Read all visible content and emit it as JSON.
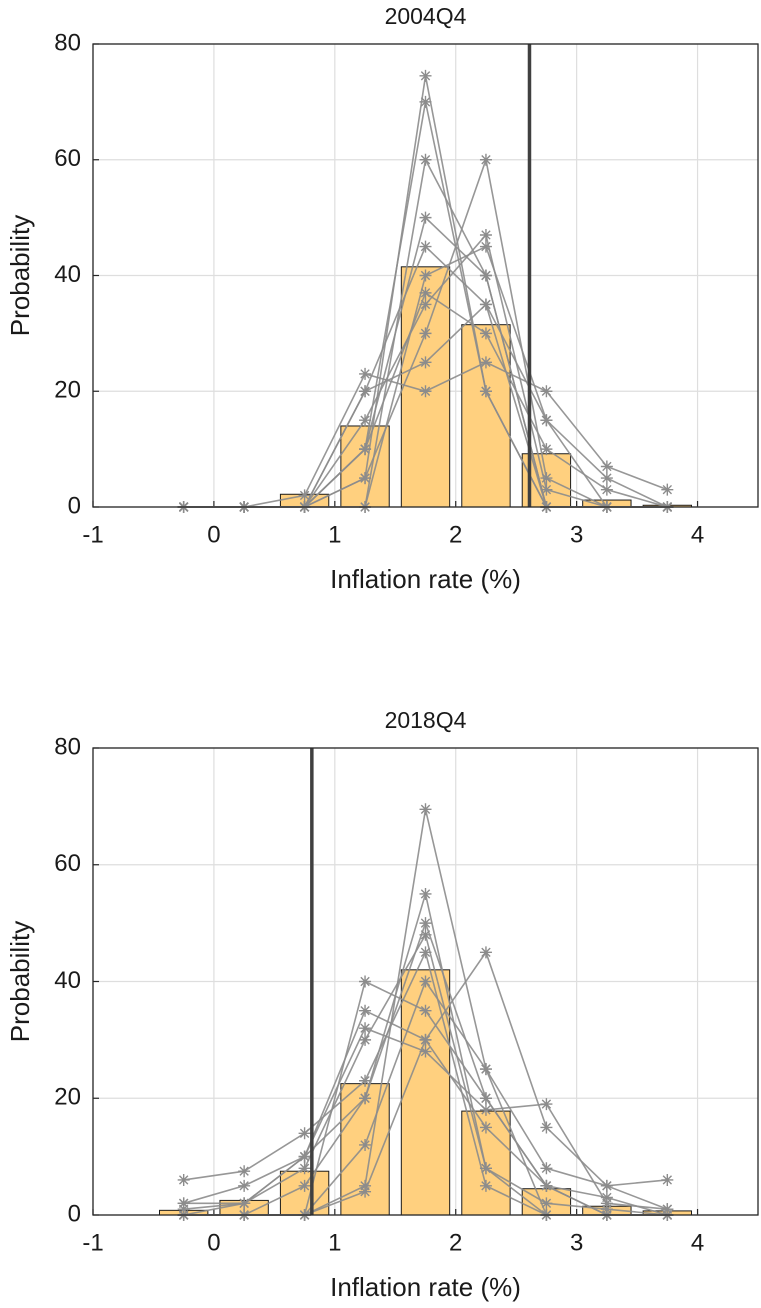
{
  "chart_data": [
    {
      "type": "bar",
      "title": "2004Q4",
      "x_label": "Inflation rate (%)",
      "y_label": "Probability",
      "x": [
        -0.25,
        0.25,
        0.75,
        1.25,
        1.75,
        2.25,
        2.75,
        3.25,
        3.75
      ],
      "values": [
        0,
        0,
        2.2,
        14,
        41.5,
        31.5,
        9.2,
        1.2,
        0.3
      ],
      "color": "#ffd07f",
      "forecasts": [
        [
          0,
          0,
          0,
          10,
          70,
          20,
          0,
          0,
          0
        ],
        [
          0,
          0,
          0,
          5,
          74.5,
          20,
          0,
          0,
          0
        ],
        [
          0,
          0,
          0,
          0,
          60,
          40,
          0,
          0,
          0
        ],
        [
          0,
          0,
          0,
          10,
          50,
          40,
          0,
          0,
          0
        ],
        [
          0,
          0,
          0,
          20,
          45,
          35,
          0,
          0,
          0
        ],
        [
          0,
          0,
          0,
          5,
          30,
          60,
          5,
          0,
          0
        ],
        [
          0,
          0,
          0,
          15,
          35,
          47,
          3,
          0,
          0
        ],
        [
          0,
          0,
          0,
          20,
          25,
          35,
          15,
          5,
          0
        ],
        [
          0,
          0,
          0,
          0,
          40,
          45,
          15,
          0,
          0
        ],
        [
          0,
          0,
          2,
          23,
          20,
          25,
          20,
          7,
          3
        ],
        [
          0,
          0,
          0,
          10,
          37,
          30,
          10,
          3,
          0
        ]
      ],
      "forecast_color": "#8c8c8c",
      "vline": 2.61,
      "vline_color": "#404040",
      "xlim": [
        -1,
        4.5
      ],
      "xticks": [
        -1,
        0,
        1,
        2,
        3,
        4
      ],
      "ylim": [
        0,
        80
      ],
      "yticks": [
        0,
        20,
        40,
        60,
        80
      ],
      "grid": true
    },
    {
      "type": "bar",
      "title": "2018Q4",
      "x_label": "Inflation rate (%)",
      "y_label": "Probability",
      "x": [
        -0.25,
        0.25,
        0.75,
        1.25,
        1.75,
        2.25,
        2.75,
        3.25,
        3.75
      ],
      "values": [
        0.8,
        2.5,
        7.5,
        22.5,
        42,
        17.8,
        4.5,
        1.5,
        0.7
      ],
      "color": "#ffd07f",
      "forecasts": [
        [
          0,
          0,
          0,
          5,
          69.5,
          25,
          0,
          0,
          0
        ],
        [
          2,
          5,
          10,
          20,
          55,
          8,
          0,
          0,
          0
        ],
        [
          6,
          7.5,
          14,
          23,
          45,
          5,
          0,
          0,
          0
        ],
        [
          0,
          0,
          0,
          40,
          35,
          20,
          5,
          0,
          0
        ],
        [
          0,
          2,
          10,
          35,
          30,
          15,
          5,
          3,
          0
        ],
        [
          0,
          0,
          5,
          20,
          50,
          20,
          5,
          0,
          0
        ],
        [
          0,
          0,
          0,
          4,
          30,
          45,
          15,
          5,
          1
        ],
        [
          1,
          2,
          8,
          30,
          48,
          8,
          2,
          1,
          0
        ],
        [
          0,
          0,
          0,
          12,
          40,
          25,
          8,
          5,
          6
        ],
        [
          2,
          2,
          10,
          32,
          28,
          18,
          19,
          2,
          1
        ]
      ],
      "forecast_color": "#8c8c8c",
      "vline": 0.81,
      "vline_color": "#404040",
      "xlim": [
        -1,
        4.5
      ],
      "xticks": [
        -1,
        0,
        1,
        2,
        3,
        4
      ],
      "ylim": [
        0,
        80
      ],
      "yticks": [
        0,
        20,
        40,
        60,
        80
      ],
      "grid": true
    }
  ]
}
